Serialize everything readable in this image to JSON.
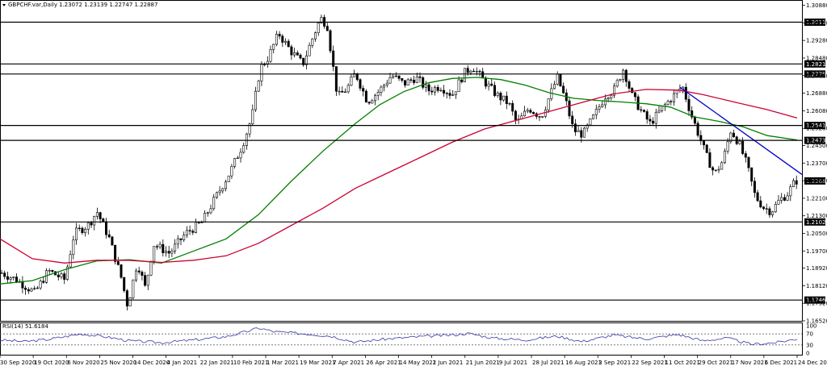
{
  "header": {
    "symbol_label": "GBPCHF.var,Daily",
    "ohlc": "1.23072 1.23139 1.22747 1.22887",
    "colors": {
      "bull": "#ffffff",
      "bear": "#000000",
      "outline": "#000000"
    }
  },
  "chart_data": {
    "type": "candlestick",
    "price_axis": {
      "ticks": [
        "1.30880",
        "1.30080",
        "1.29280",
        "1.28480",
        "1.27680",
        "1.26880",
        "1.26080",
        "1.25280",
        "1.24500",
        "1.23700",
        "1.22900",
        "1.22100",
        "1.21300",
        "1.20500",
        "1.19700",
        "1.18920",
        "1.18120",
        "1.17320",
        "1.16520"
      ],
      "ylim": [
        1.1652,
        1.3112
      ]
    },
    "time_axis": {
      "labels": [
        "30 Sep 2020",
        "19 Oct 2020",
        "6 Nov 2020",
        "25 Nov 2020",
        "14 Dec 2020",
        "4 Jan 2021",
        "22 Jan 2021",
        "10 Feb 2021",
        "1 Mar 2021",
        "19 Mar 2021",
        "7 Apr 2021",
        "26 Apr 2021",
        "14 May 2021",
        "2 Jun 2021",
        "21 Jun 2021",
        "9 Jul 2021",
        "28 Jul 2021",
        "16 Aug 2021",
        "3 Sep 2021",
        "22 Sep 2021",
        "11 Oct 2021",
        "29 Oct 2021",
        "17 Nov 2021",
        "6 Dec 2021",
        "24 Dec 2021"
      ]
    },
    "horizontal_levels": [
      {
        "label": "1.30110",
        "value": 1.3011
      },
      {
        "label": "1.27752",
        "value": 1.27752
      },
      {
        "label": "1.25412",
        "value": 1.25412
      },
      {
        "label": "1.24732",
        "value": 1.24732
      },
      {
        "label": "1.21020",
        "value": 1.2102
      },
      {
        "label": "1.17467",
        "value": 1.17467
      }
    ],
    "resistance_level": {
      "label": "1.28211",
      "value": 1.28211,
      "color": "#000000"
    },
    "current_price": {
      "label": "1.22887",
      "value": 1.22887
    },
    "moving_averages": [
      {
        "color": "#008000",
        "points": [
          [
            0,
            1.182
          ],
          [
            40,
            1.1835
          ],
          [
            80,
            1.1885
          ],
          [
            120,
            1.1925
          ],
          [
            160,
            1.193
          ],
          [
            200,
            1.1915
          ],
          [
            240,
            1.197
          ],
          [
            280,
            1.2025
          ],
          [
            320,
            1.2135
          ],
          [
            360,
            1.2285
          ],
          [
            400,
            1.2425
          ],
          [
            440,
            1.255
          ],
          [
            470,
            1.2635
          ],
          [
            500,
            1.2695
          ],
          [
            530,
            1.2735
          ],
          [
            560,
            1.2755
          ],
          [
            590,
            1.276
          ],
          [
            620,
            1.275
          ],
          [
            650,
            1.2725
          ],
          [
            680,
            1.269
          ],
          [
            710,
            1.2665
          ],
          [
            740,
            1.2655
          ],
          [
            770,
            1.2648
          ],
          [
            800,
            1.264
          ],
          [
            830,
            1.2625
          ],
          [
            860,
            1.258
          ],
          [
            890,
            1.256
          ],
          [
            920,
            1.2535
          ],
          [
            950,
            1.2495
          ],
          [
            987,
            1.2475
          ]
        ]
      },
      {
        "color": "#cc0033",
        "points": [
          [
            0,
            1.2025
          ],
          [
            40,
            1.1935
          ],
          [
            80,
            1.1915
          ],
          [
            120,
            1.1928
          ],
          [
            160,
            1.1927
          ],
          [
            200,
            1.1918
          ],
          [
            240,
            1.1928
          ],
          [
            280,
            1.1948
          ],
          [
            320,
            1.2005
          ],
          [
            360,
            1.2085
          ],
          [
            400,
            1.2165
          ],
          [
            440,
            1.2255
          ],
          [
            480,
            1.2325
          ],
          [
            520,
            1.2395
          ],
          [
            560,
            1.2465
          ],
          [
            600,
            1.2525
          ],
          [
            640,
            1.2565
          ],
          [
            680,
            1.2605
          ],
          [
            720,
            1.2645
          ],
          [
            760,
            1.2685
          ],
          [
            800,
            1.2705
          ],
          [
            840,
            1.2702
          ],
          [
            870,
            1.2682
          ],
          [
            910,
            1.2647
          ],
          [
            950,
            1.2613
          ],
          [
            987,
            1.2575
          ]
        ]
      }
    ],
    "trendline": {
      "color": "#0000cc",
      "points": [
        [
          842,
          1.2715
        ],
        [
          993,
          1.2318
        ]
      ]
    },
    "rsi": {
      "label": "RSI(14) 51.6184",
      "ticks": [
        "100",
        "70",
        "30",
        "0"
      ],
      "levels": [
        70,
        30
      ],
      "ylim": [
        0,
        100
      ],
      "color": "#3333aa",
      "points": [
        [
          0,
          48
        ],
        [
          30,
          42
        ],
        [
          60,
          50
        ],
        [
          100,
          70
        ],
        [
          130,
          60
        ],
        [
          160,
          45
        ],
        [
          200,
          38
        ],
        [
          240,
          48
        ],
        [
          280,
          60
        ],
        [
          310,
          82
        ],
        [
          320,
          92
        ],
        [
          340,
          78
        ],
        [
          380,
          70
        ],
        [
          410,
          62
        ],
        [
          440,
          40
        ],
        [
          480,
          52
        ],
        [
          520,
          60
        ],
        [
          560,
          66
        ],
        [
          580,
          72
        ],
        [
          610,
          55
        ],
        [
          650,
          48
        ],
        [
          690,
          62
        ],
        [
          720,
          42
        ],
        [
          760,
          66
        ],
        [
          780,
          58
        ],
        [
          800,
          52
        ],
        [
          840,
          68
        ],
        [
          870,
          45
        ],
        [
          900,
          55
        ],
        [
          930,
          32
        ],
        [
          960,
          38
        ],
        [
          987,
          52
        ]
      ]
    }
  }
}
